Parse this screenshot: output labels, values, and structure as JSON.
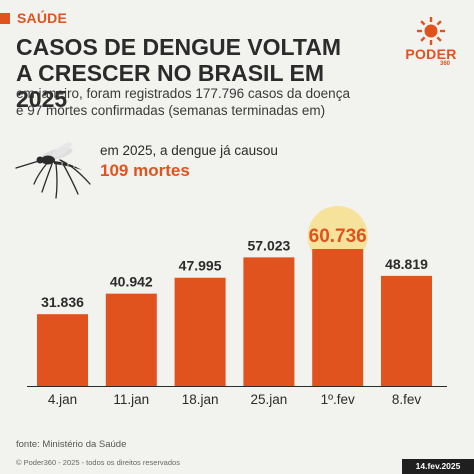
{
  "header": {
    "category": "SAÚDE",
    "title_line1": "CASOS DE DENGUE VOLTAM",
    "title_line2": "A CRESCER NO BRASIL EM 2025",
    "subtitle_line1": "em janeiro, foram registrados 177.796 casos da doença",
    "subtitle_line2": "e 97 mortes confirmadas (semanas terminadas em)"
  },
  "logo": {
    "name": "PODER",
    "sub": "360"
  },
  "callout": {
    "line1": "em 2025, a dengue já causou",
    "line2": "109 mortes"
  },
  "chart_data": {
    "type": "bar",
    "title": "CASOS DE DENGUE VOLTAM A CRESCER NO BRASIL EM 2025",
    "categories": [
      "4.jan",
      "11.jan",
      "18.jan",
      "25.jan",
      "1º.fev",
      "8.fev"
    ],
    "values": [
      31836,
      40942,
      47995,
      57023,
      60736,
      48819
    ],
    "value_labels": [
      "31.836",
      "40.942",
      "47.995",
      "57.023",
      "60.736",
      "48.819"
    ],
    "highlight_index": 4,
    "ylim": [
      0,
      60736
    ],
    "grid": false,
    "colors": {
      "bar": "#e0531f",
      "highlight_circle": "#f6e29a",
      "axis": "#2b2b2b"
    }
  },
  "footer": {
    "source": "fonte: Ministério da Saúde",
    "copyright": "© Poder360 - 2025 - todos os direitos reservados",
    "date": "14.fev.2025"
  },
  "colors": {
    "accent": "#e0531f",
    "background": "#f2f2ef",
    "text": "#2b2b2b"
  }
}
